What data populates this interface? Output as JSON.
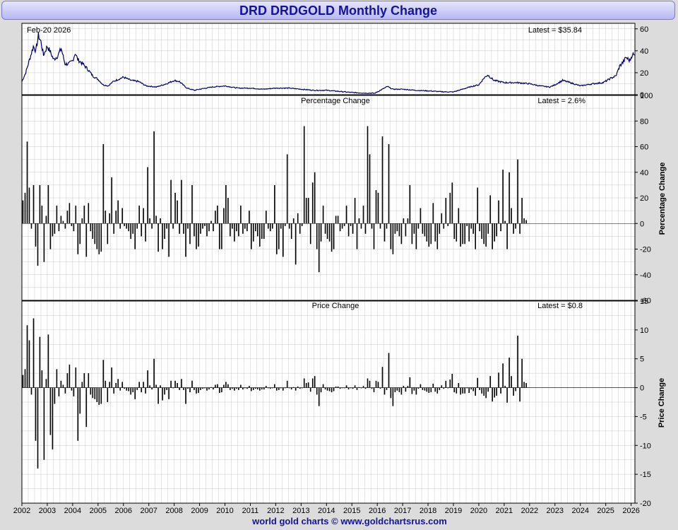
{
  "title": "DRD DRDGOLD Monthly Change",
  "footer": "world gold charts © www.goldchartsrus.com",
  "date_label": "Feb-20  2026",
  "colors": {
    "price_line": "#000066",
    "bars": "#000000",
    "grid": "#c8c8c8",
    "title_text": "#14149a"
  },
  "chart_data": [
    {
      "type": "line",
      "panel": "price",
      "title": "",
      "latest_label": "Latest = $35.84",
      "ylim": [
        0,
        65
      ],
      "yticks": [
        0,
        20,
        40,
        60
      ],
      "xlim": [
        2002.0,
        2026.15
      ],
      "anchors": [
        [
          2002.0,
          12
        ],
        [
          2002.15,
          20
        ],
        [
          2002.3,
          32
        ],
        [
          2002.45,
          44
        ],
        [
          2002.55,
          40
        ],
        [
          2002.65,
          54
        ],
        [
          2002.75,
          48
        ],
        [
          2002.85,
          36
        ],
        [
          2003.0,
          44
        ],
        [
          2003.1,
          40
        ],
        [
          2003.25,
          32
        ],
        [
          2003.4,
          35
        ],
        [
          2003.55,
          42
        ],
        [
          2003.7,
          28
        ],
        [
          2003.85,
          28
        ],
        [
          2004.0,
          31
        ],
        [
          2004.1,
          38
        ],
        [
          2004.2,
          32
        ],
        [
          2004.4,
          28
        ],
        [
          2004.6,
          23
        ],
        [
          2004.8,
          17
        ],
        [
          2005.0,
          14
        ],
        [
          2005.2,
          9
        ],
        [
          2005.4,
          8
        ],
        [
          2005.6,
          12
        ],
        [
          2005.8,
          14
        ],
        [
          2006.0,
          16
        ],
        [
          2006.3,
          13
        ],
        [
          2006.6,
          12
        ],
        [
          2006.9,
          8
        ],
        [
          2007.3,
          7
        ],
        [
          2007.7,
          10
        ],
        [
          2008.0,
          13
        ],
        [
          2008.2,
          12
        ],
        [
          2008.5,
          6
        ],
        [
          2008.8,
          4
        ],
        [
          2009.0,
          5
        ],
        [
          2009.5,
          7
        ],
        [
          2010.0,
          8
        ],
        [
          2010.5,
          6
        ],
        [
          2011.0,
          6
        ],
        [
          2011.5,
          5
        ],
        [
          2012.0,
          6
        ],
        [
          2012.5,
          6
        ],
        [
          2013.0,
          5
        ],
        [
          2013.5,
          4
        ],
        [
          2014.0,
          4
        ],
        [
          2014.5,
          3
        ],
        [
          2015.0,
          2
        ],
        [
          2015.5,
          1.5
        ],
        [
          2015.9,
          1.3
        ],
        [
          2016.2,
          5
        ],
        [
          2016.4,
          7.5
        ],
        [
          2016.6,
          5
        ],
        [
          2017.0,
          5
        ],
        [
          2017.5,
          4
        ],
        [
          2018.0,
          3.5
        ],
        [
          2018.5,
          2.7
        ],
        [
          2019.0,
          2.5
        ],
        [
          2019.5,
          6
        ],
        [
          2019.8,
          8
        ],
        [
          2020.0,
          9
        ],
        [
          2020.2,
          15
        ],
        [
          2020.35,
          18
        ],
        [
          2020.6,
          13
        ],
        [
          2021.0,
          11
        ],
        [
          2021.5,
          11
        ],
        [
          2022.0,
          10
        ],
        [
          2022.4,
          8
        ],
        [
          2022.8,
          7
        ],
        [
          2023.0,
          9
        ],
        [
          2023.3,
          13
        ],
        [
          2023.6,
          11
        ],
        [
          2024.0,
          8
        ],
        [
          2024.5,
          10
        ],
        [
          2024.9,
          11
        ],
        [
          2025.2,
          15
        ],
        [
          2025.4,
          17
        ],
        [
          2025.55,
          26
        ],
        [
          2025.7,
          30
        ],
        [
          2025.8,
          34
        ],
        [
          2025.95,
          31
        ],
        [
          2026.05,
          37
        ],
        [
          2026.13,
          35.84
        ]
      ]
    },
    {
      "type": "bar",
      "panel": "percentage",
      "title": "Percentage Change",
      "latest_label": "Latest = 2.6%",
      "ylabel": "Percentage Change",
      "ylim": [
        -60,
        100
      ],
      "yticks": [
        -60,
        -40,
        -20,
        0,
        20,
        40,
        60,
        80,
        100
      ],
      "x_start": 2002.0,
      "x_step": 0.0833,
      "values": [
        18,
        24,
        64,
        28,
        -4,
        30,
        -18,
        -33,
        30,
        14,
        -30,
        6,
        30,
        -20,
        -10,
        -8,
        14,
        -6,
        6,
        2,
        -4,
        10,
        16,
        -2,
        -6,
        14,
        -24,
        -16,
        4,
        14,
        -26,
        16,
        -6,
        -12,
        -16,
        -20,
        -24,
        -22,
        62,
        10,
        -16,
        8,
        36,
        -8,
        10,
        18,
        -4,
        12,
        -2,
        -4,
        -6,
        -12,
        -8,
        -20,
        -4,
        14,
        -10,
        12,
        -14,
        44,
        4,
        -4,
        72,
        6,
        -22,
        4,
        -20,
        -12,
        -4,
        -26,
        34,
        -4,
        24,
        18,
        -8,
        34,
        -8,
        -26,
        -4,
        -16,
        30,
        -10,
        -20,
        -18,
        -8,
        -4,
        -2,
        -10,
        -6,
        2,
        -6,
        10,
        14,
        -20,
        -20,
        12,
        30,
        20,
        -10,
        -4,
        -14,
        -6,
        -10,
        14,
        -8,
        -4,
        -6,
        10,
        -20,
        -14,
        -6,
        -10,
        -18,
        -12,
        -12,
        10,
        -4,
        -6,
        -4,
        30,
        -24,
        -20,
        -4,
        -26,
        -2,
        54,
        -4,
        -12,
        4,
        -32,
        8,
        -8,
        -2,
        76,
        20,
        20,
        -16,
        32,
        40,
        -20,
        -38,
        -14,
        14,
        -8,
        -12,
        -14,
        -22,
        -20,
        6,
        6,
        -6,
        -4,
        -2,
        14,
        -10,
        -2,
        -8,
        20,
        -20,
        4,
        -4,
        14,
        -8,
        76,
        54,
        -4,
        -20,
        26,
        24,
        -4,
        68,
        -14,
        -4,
        62,
        -20,
        -24,
        -8,
        -6,
        -10,
        -16,
        4,
        -10,
        4,
        30,
        -16,
        -8,
        -20,
        -4,
        12,
        -8,
        -10,
        -14,
        -18,
        -16,
        16,
        -14,
        -20,
        -8,
        8,
        -4,
        20,
        -2,
        24,
        32,
        -12,
        -14,
        12,
        -18,
        -16,
        -16,
        -2,
        -14,
        -4,
        -8,
        -20,
        28,
        -6,
        -12,
        -16,
        -18,
        -8,
        22,
        -20,
        -14,
        -10,
        18,
        -6,
        42,
        2,
        -20,
        40,
        12,
        -8,
        -4,
        50,
        -8,
        20,
        4,
        2.6
      ]
    },
    {
      "type": "bar",
      "panel": "price_change",
      "title": "Price Change",
      "latest_label": "Latest = $0.8",
      "ylabel": "Price Change",
      "ylim": [
        -20,
        15
      ],
      "yticks": [
        -20,
        -15,
        -10,
        -5,
        0,
        5,
        10,
        15
      ],
      "x_start": 2002.0,
      "x_step": 0.0833,
      "values": [
        2.2,
        3.2,
        10.8,
        8.2,
        -1.2,
        12,
        -9.2,
        -14,
        8.8,
        3,
        -12.5,
        1.5,
        9.2,
        -8.2,
        -10.7,
        -2.8,
        3.2,
        -1.5,
        1.2,
        0.5,
        -1,
        2.5,
        4,
        -0.5,
        -1.5,
        3.5,
        -9.2,
        -4.5,
        1,
        2.5,
        -6.8,
        2.5,
        -1.2,
        -1.8,
        -2,
        -2.5,
        -3,
        -2.8,
        4.8,
        1.2,
        -2.5,
        1,
        3.5,
        -1,
        0.8,
        1.5,
        -0.5,
        1,
        -0.2,
        -0.5,
        -0.6,
        -1.2,
        -0.8,
        -2,
        -0.4,
        1,
        -0.8,
        1,
        -1,
        3,
        0.4,
        -0.3,
        5,
        0.5,
        -2.8,
        0.4,
        -2.2,
        -1.2,
        -0.4,
        -2,
        1.2,
        -0.1,
        1.2,
        0.8,
        -0.4,
        1.5,
        -0.4,
        -2.8,
        -0.2,
        -0.8,
        1.2,
        -0.4,
        -1,
        -0.9,
        -0.4,
        -0.2,
        -0.1,
        -0.5,
        -0.3,
        0.1,
        -0.3,
        0.5,
        0.6,
        -0.9,
        -0.8,
        0.5,
        1,
        0.6,
        -0.4,
        -0.2,
        -0.5,
        -0.2,
        -0.4,
        0.5,
        -0.3,
        -0.1,
        -0.2,
        0.3,
        -0.6,
        -0.4,
        -0.2,
        -0.3,
        -0.5,
        -0.3,
        -0.3,
        0.3,
        -0.1,
        -0.2,
        -0.1,
        0.6,
        -0.5,
        -0.4,
        -0.1,
        -0.5,
        -0.1,
        1.2,
        -0.1,
        -0.3,
        0.1,
        -0.5,
        0.2,
        -0.2,
        -0.1,
        1.6,
        0.8,
        0.9,
        -0.7,
        1.6,
        2,
        -1.2,
        -3.2,
        -0.8,
        0.6,
        -0.3,
        -0.5,
        -0.6,
        -0.8,
        -0.6,
        0.2,
        0.2,
        -0.2,
        -0.1,
        -0.1,
        0.4,
        -0.3,
        -0.1,
        -0.2,
        0.4,
        -0.4,
        0.1,
        -0.1,
        0.3,
        -0.2,
        1.6,
        1.2,
        -0.2,
        -0.8,
        1.2,
        1,
        -0.2,
        3.6,
        -1.2,
        -0.4,
        6,
        -1.8,
        -3.2,
        -0.8,
        -0.5,
        -0.8,
        -1.2,
        0.3,
        -0.7,
        0.3,
        1.8,
        -1.1,
        -0.5,
        -1.2,
        -0.2,
        0.6,
        -0.4,
        -0.5,
        -0.7,
        -0.9,
        -0.8,
        0.7,
        -0.7,
        -1,
        -0.4,
        0.4,
        -0.2,
        1.2,
        -0.1,
        1.4,
        2.4,
        -0.8,
        -1,
        0.8,
        -1.2,
        -1,
        -1,
        -0.1,
        -0.9,
        -0.3,
        -0.6,
        -1.4,
        1.7,
        -0.4,
        -1,
        -1.4,
        -1.8,
        -0.7,
        2,
        -2.4,
        -1.7,
        -1.4,
        2.6,
        -1,
        4.2,
        0.3,
        -2.6,
        5.2,
        2,
        -1.4,
        -0.6,
        9,
        -2.4,
        5,
        1,
        0.8
      ]
    }
  ],
  "x_axis": {
    "ticks": [
      "2002",
      "2003",
      "2004",
      "2005",
      "2006",
      "2007",
      "2008",
      "2009",
      "2010",
      "2011",
      "2012",
      "2013",
      "2014",
      "2015",
      "2016",
      "2017",
      "2018",
      "2019",
      "2020",
      "2021",
      "2022",
      "2023",
      "2024",
      "2025",
      "2026"
    ]
  }
}
